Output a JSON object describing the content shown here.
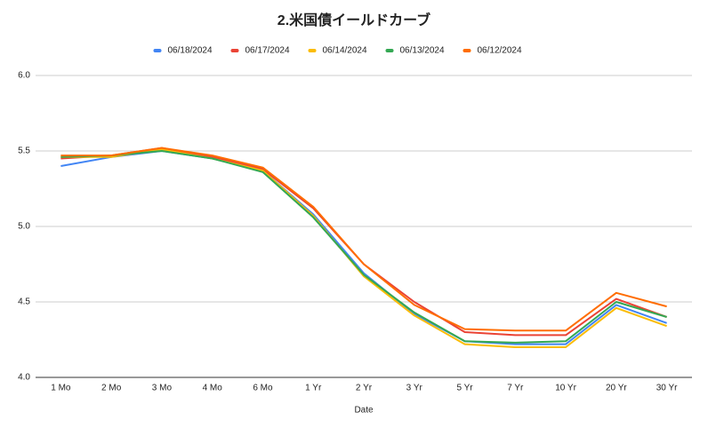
{
  "chart_data": {
    "type": "line",
    "title": "2.米国債イールドカーブ",
    "x_label": "Date",
    "categories": [
      "1 Mo",
      "2 Mo",
      "3 Mo",
      "4 Mo",
      "6 Mo",
      "1 Yr",
      "2 Yr",
      "3 Yr",
      "5 Yr",
      "7 Yr",
      "10 Yr",
      "20 Yr",
      "30 Yr"
    ],
    "series": [
      {
        "name": "06/18/2024",
        "color": "#4285f4",
        "values": [
          5.4,
          5.46,
          5.5,
          5.45,
          5.37,
          5.08,
          4.69,
          4.42,
          4.24,
          4.22,
          4.22,
          4.48,
          4.36
        ]
      },
      {
        "name": "06/17/2024",
        "color": "#ea4335",
        "values": [
          5.45,
          5.47,
          5.52,
          5.46,
          5.38,
          5.12,
          4.75,
          4.5,
          4.3,
          4.28,
          4.28,
          4.52,
          4.4
        ]
      },
      {
        "name": "06/14/2024",
        "color": "#fbbc04",
        "values": [
          5.46,
          5.46,
          5.51,
          5.45,
          5.37,
          5.07,
          4.67,
          4.41,
          4.22,
          4.2,
          4.2,
          4.46,
          4.34
        ]
      },
      {
        "name": "06/13/2024",
        "color": "#34a853",
        "values": [
          5.46,
          5.47,
          5.5,
          5.45,
          5.36,
          5.06,
          4.68,
          4.43,
          4.24,
          4.23,
          4.24,
          4.5,
          4.4
        ]
      },
      {
        "name": "06/12/2024",
        "color": "#ff6d01",
        "values": [
          5.47,
          5.47,
          5.52,
          5.47,
          5.39,
          5.13,
          4.75,
          4.48,
          4.32,
          4.31,
          4.31,
          4.56,
          4.47
        ]
      }
    ],
    "ylim": [
      4.0,
      6.0
    ],
    "yticks": [
      {
        "value": 4.0,
        "label": "4.0"
      },
      {
        "value": 4.5,
        "label": "4.5"
      },
      {
        "value": 5.0,
        "label": "5.0"
      },
      {
        "value": 5.5,
        "label": "5.5"
      },
      {
        "value": 6.0,
        "label": "6.0"
      }
    ],
    "grid": true,
    "legend": "top"
  }
}
